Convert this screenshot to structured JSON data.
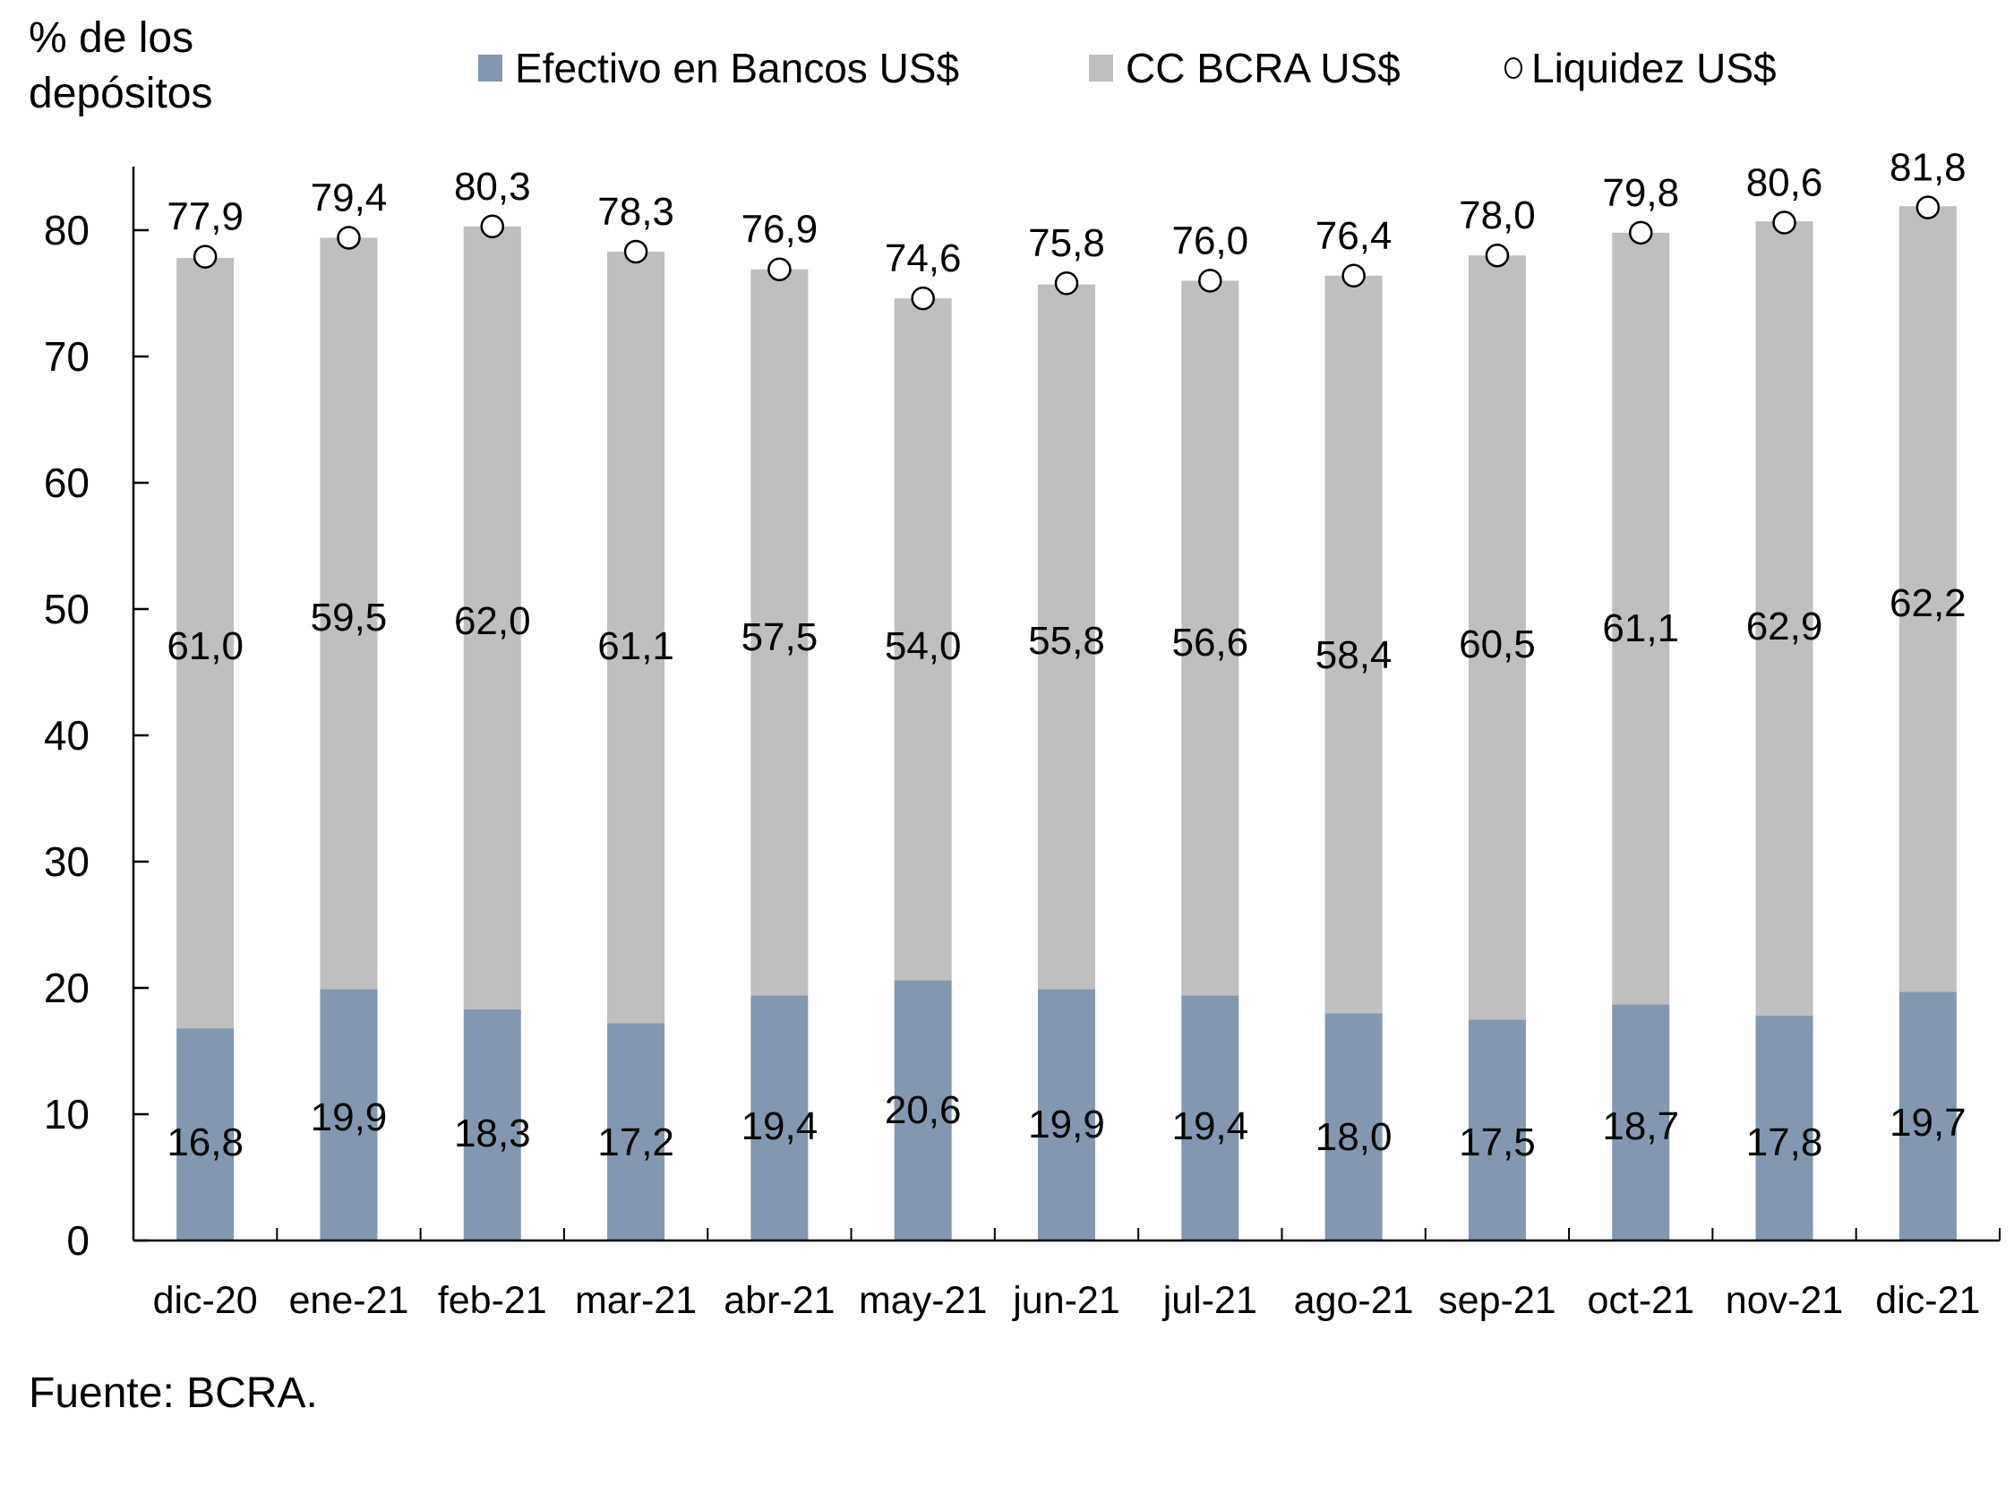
{
  "chart_data": {
    "type": "bar",
    "stacked": true,
    "title": "",
    "ylabel": "% de los depósitos",
    "xlabel": "",
    "ylim": [
      0,
      85
    ],
    "yticks": [
      0,
      10,
      20,
      30,
      40,
      50,
      60,
      70,
      80
    ],
    "grid": false,
    "legend_position": "top",
    "categories": [
      "dic-20",
      "ene-21",
      "feb-21",
      "mar-21",
      "abr-21",
      "may-21",
      "jun-21",
      "jul-21",
      "ago-21",
      "sep-21",
      "oct-21",
      "nov-21",
      "dic-21"
    ],
    "series": [
      {
        "name": "Efectivo en Bancos US$",
        "kind": "bar",
        "color": "#8497b0",
        "values": [
          16.8,
          19.9,
          18.3,
          17.2,
          19.4,
          20.6,
          19.9,
          19.4,
          18.0,
          17.5,
          18.7,
          17.8,
          19.7
        ],
        "labels": [
          "16,8",
          "19,9",
          "18,3",
          "17,2",
          "19,4",
          "20,6",
          "19,9",
          "19,4",
          "18,0",
          "17,5",
          "18,7",
          "17,8",
          "19,7"
        ]
      },
      {
        "name": "CC BCRA US$",
        "kind": "bar",
        "color": "#bfbfbf",
        "values": [
          61.0,
          59.5,
          62.0,
          61.1,
          57.5,
          54.0,
          55.8,
          56.6,
          58.4,
          60.5,
          61.1,
          62.9,
          62.2
        ],
        "labels": [
          "61,0",
          "59,5",
          "62,0",
          "61,1",
          "57,5",
          "54,0",
          "55,8",
          "56,6",
          "58,4",
          "60,5",
          "61,1",
          "62,9",
          "62,2"
        ]
      },
      {
        "name": "Liquidez US$",
        "kind": "marker",
        "marker": "circle-open",
        "color": "#000000",
        "values": [
          77.9,
          79.4,
          80.3,
          78.3,
          76.9,
          74.6,
          75.8,
          76.0,
          76.4,
          78.0,
          79.8,
          80.6,
          81.8
        ],
        "labels": [
          "77,9",
          "79,4",
          "80,3",
          "78,3",
          "76,9",
          "74,6",
          "75,8",
          "76,0",
          "76,4",
          "78,0",
          "79,8",
          "80,6",
          "81,8"
        ]
      }
    ],
    "source": "Fuente: BCRA."
  },
  "header": {
    "ylabel_line1": "% de los",
    "ylabel_line2": "depósitos"
  },
  "legend": [
    {
      "label": "Efectivo en Bancos US$",
      "color": "#8497b0",
      "shape": "square"
    },
    {
      "label": "CC BCRA US$",
      "color": "#bfbfbf",
      "shape": "square"
    },
    {
      "label": "Liquidez US$",
      "color": "#000000",
      "shape": "circle-open"
    }
  ],
  "footer": {
    "source": "Fuente: BCRA."
  }
}
